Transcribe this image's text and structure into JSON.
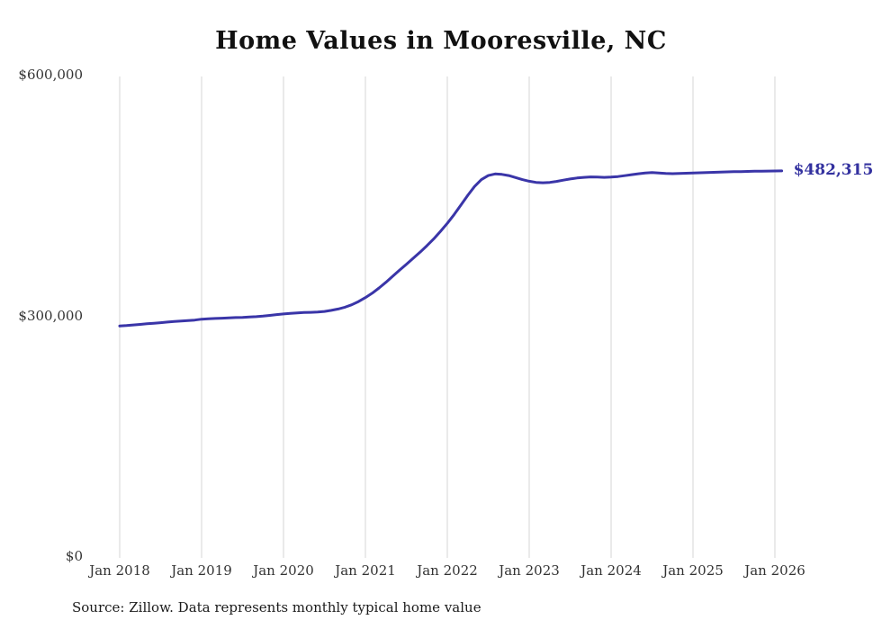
{
  "chart_data": {
    "type": "line",
    "title": "Home Values in Mooresville, NC",
    "source": "Source: Zillow. Data represents monthly typical home value",
    "end_label": "$482,315",
    "latest_value": 482315,
    "ylabel": "",
    "xlabel": "",
    "ylim": [
      0,
      600000
    ],
    "grid": "vertical-only",
    "y_ticks": [
      {
        "value": 0,
        "label": "$0"
      },
      {
        "value": 300000,
        "label": "$300,000"
      },
      {
        "value": 600000,
        "label": "$600,000"
      }
    ],
    "x_tick_labels": [
      "Jan 2018",
      "Jan 2019",
      "Jan 2020",
      "Jan 2021",
      "Jan 2022",
      "Jan 2023",
      "Jan 2024",
      "Jan 2025",
      "Jan 2026"
    ],
    "series": [
      {
        "name": "Typical home value",
        "color": "#3a35a8",
        "start": "2018-01",
        "interval": "monthly",
        "values": [
          289000,
          289600,
          290300,
          291000,
          291800,
          292500,
          293200,
          293900,
          294600,
          295200,
          295800,
          296400,
          297500,
          298000,
          298400,
          298800,
          299200,
          299500,
          299800,
          300200,
          300700,
          301400,
          302200,
          303200,
          304000,
          304800,
          305400,
          305800,
          306000,
          306400,
          307200,
          308500,
          310200,
          312500,
          315500,
          319500,
          324500,
          330000,
          336500,
          343500,
          351000,
          358500,
          366000,
          373500,
          381000,
          389000,
          397500,
          407000,
          417000,
          428000,
          440000,
          452000,
          463000,
          471500,
          476500,
          478500,
          478000,
          476500,
          474000,
          471500,
          469500,
          468000,
          467500,
          468000,
          469200,
          470800,
          472300,
          473500,
          474300,
          474800,
          474600,
          474300,
          474600,
          475300,
          476400,
          477600,
          478800,
          479800,
          480200,
          479700,
          479100,
          478900,
          479100,
          479400,
          479700,
          480000,
          480300,
          480600,
          480900,
          481100,
          481300,
          481500,
          481700,
          481900,
          482000,
          482100,
          482200,
          482315
        ]
      }
    ]
  },
  "colors": {
    "line": "#3a35a8",
    "end_label": "#33319f",
    "gridline": "#d6d6d6",
    "title": "#111111",
    "axis_text": "#333333",
    "background": "#ffffff"
  }
}
